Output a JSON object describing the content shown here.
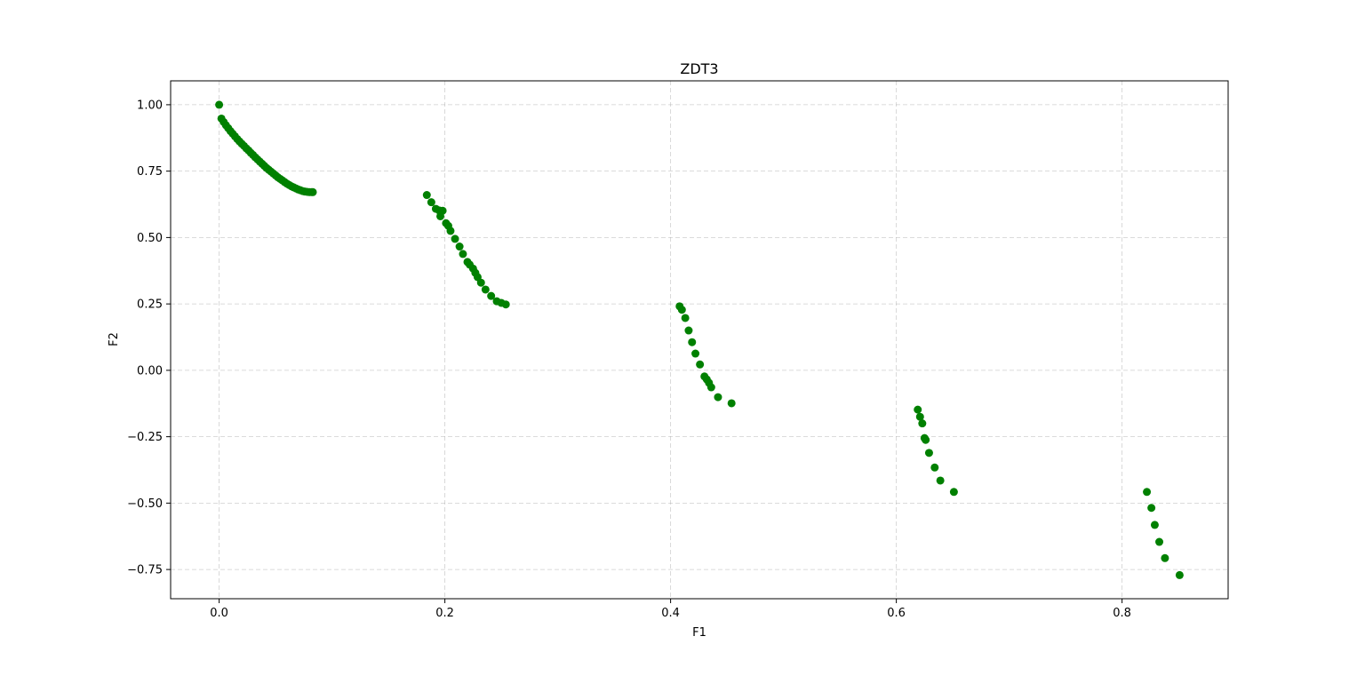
{
  "chart_data": {
    "type": "scatter",
    "title": "ZDT3",
    "xlabel": "F1",
    "ylabel": "F2",
    "xlim": [
      -0.043,
      0.894
    ],
    "ylim": [
      -0.86,
      1.09
    ],
    "x_ticks": [
      0.0,
      0.2,
      0.4,
      0.6,
      0.8
    ],
    "x_tick_labels": [
      "0.0",
      "0.2",
      "0.4",
      "0.6",
      "0.8"
    ],
    "y_ticks": [
      -0.75,
      -0.5,
      -0.25,
      0.0,
      0.25,
      0.5,
      0.75,
      1.0
    ],
    "y_tick_labels": [
      "−0.75",
      "−0.50",
      "−0.25",
      "0.00",
      "0.25",
      "0.50",
      "0.75",
      "1.00"
    ],
    "grid": true,
    "grid_style": "dashed",
    "point_color": "#008000",
    "grid_color": "#b0b0b0",
    "series": [
      {
        "x": [
          0.0,
          0.002,
          0.004,
          0.006,
          0.008,
          0.01,
          0.012,
          0.014,
          0.016,
          0.018,
          0.02,
          0.022,
          0.024,
          0.026,
          0.028,
          0.03,
          0.032,
          0.034,
          0.036,
          0.038,
          0.04,
          0.042,
          0.044,
          0.046,
          0.048,
          0.05,
          0.052,
          0.054,
          0.056,
          0.058,
          0.06,
          0.062,
          0.064,
          0.066,
          0.068,
          0.07,
          0.072,
          0.074,
          0.076,
          0.078,
          0.08,
          0.082,
          0.083,
          0.184,
          0.188,
          0.192,
          0.195,
          0.196,
          0.198,
          0.201,
          0.203,
          0.205,
          0.209,
          0.213,
          0.216,
          0.22,
          0.222,
          0.225,
          0.227,
          0.229,
          0.232,
          0.236,
          0.241,
          0.246,
          0.25,
          0.254,
          0.408,
          0.41,
          0.413,
          0.416,
          0.419,
          0.422,
          0.426,
          0.43,
          0.432,
          0.434,
          0.436,
          0.442,
          0.454,
          0.619,
          0.621,
          0.623,
          0.625,
          0.626,
          0.629,
          0.634,
          0.639,
          0.651,
          0.822,
          0.826,
          0.829,
          0.833,
          0.838,
          0.851
        ],
        "y": [
          1.0,
          0.948,
          0.935,
          0.923,
          0.912,
          0.901,
          0.891,
          0.881,
          0.871,
          0.862,
          0.853,
          0.845,
          0.836,
          0.828,
          0.819,
          0.811,
          0.802,
          0.794,
          0.786,
          0.778,
          0.77,
          0.762,
          0.755,
          0.748,
          0.741,
          0.734,
          0.727,
          0.721,
          0.715,
          0.709,
          0.703,
          0.698,
          0.693,
          0.689,
          0.685,
          0.681,
          0.678,
          0.675,
          0.673,
          0.672,
          0.671,
          0.671,
          0.671,
          0.66,
          0.633,
          0.608,
          0.602,
          0.58,
          0.601,
          0.554,
          0.544,
          0.525,
          0.495,
          0.466,
          0.438,
          0.408,
          0.398,
          0.383,
          0.367,
          0.351,
          0.33,
          0.304,
          0.28,
          0.26,
          0.254,
          0.248,
          0.241,
          0.228,
          0.197,
          0.15,
          0.106,
          0.063,
          0.022,
          -0.023,
          -0.034,
          -0.047,
          -0.064,
          -0.101,
          -0.124,
          -0.148,
          -0.175,
          -0.2,
          -0.255,
          -0.262,
          -0.311,
          -0.366,
          -0.415,
          -0.458,
          -0.458,
          -0.518,
          -0.582,
          -0.646,
          -0.707,
          -0.771
        ]
      }
    ]
  }
}
